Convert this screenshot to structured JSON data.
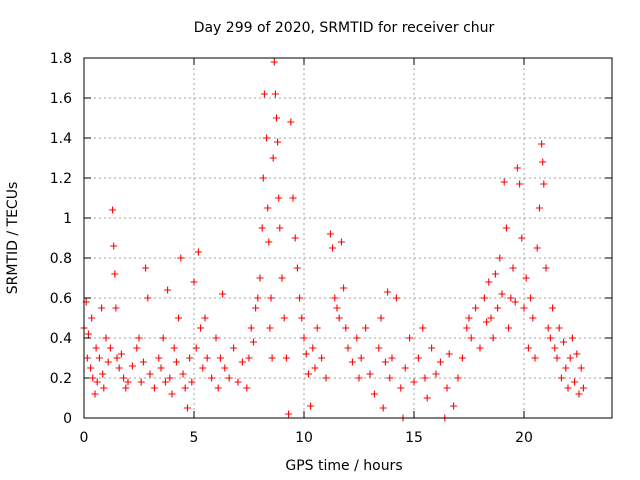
{
  "chart_data": {
    "type": "scatter",
    "title": "Day 299 of 2020, SRMTID for receiver chur",
    "xlabel": "GPS time / hours",
    "ylabel": "SRMTID / TECUs",
    "xlim": [
      0,
      24
    ],
    "ylim": [
      0,
      1.8
    ],
    "xticks": [
      0,
      5,
      10,
      15,
      20
    ],
    "xtick_labels": [
      "0",
      "5",
      "10",
      "15",
      "20"
    ],
    "yticks": [
      0,
      0.2,
      0.4,
      0.6,
      0.8,
      1,
      1.2,
      1.4,
      1.6,
      1.8
    ],
    "ytick_labels": [
      "0",
      "0.2",
      "0.4",
      "0.6",
      "0.8",
      "1",
      "1.2",
      "1.4",
      "1.6",
      "1.8"
    ],
    "grid": true,
    "marker": "+",
    "series": [
      {
        "name": "SRMTID",
        "color": "#ff0000",
        "points": [
          [
            0.0,
            0.45
          ],
          [
            0.1,
            0.58
          ],
          [
            0.15,
            0.3
          ],
          [
            0.2,
            0.42
          ],
          [
            0.3,
            0.25
          ],
          [
            0.35,
            0.5
          ],
          [
            0.4,
            0.2
          ],
          [
            0.5,
            0.12
          ],
          [
            0.55,
            0.35
          ],
          [
            0.6,
            0.18
          ],
          [
            0.7,
            0.3
          ],
          [
            0.8,
            0.55
          ],
          [
            0.85,
            0.22
          ],
          [
            0.9,
            0.15
          ],
          [
            1.0,
            0.4
          ],
          [
            1.1,
            0.28
          ],
          [
            1.2,
            0.35
          ],
          [
            1.3,
            1.04
          ],
          [
            1.35,
            0.86
          ],
          [
            1.4,
            0.72
          ],
          [
            1.45,
            0.55
          ],
          [
            1.5,
            0.3
          ],
          [
            1.6,
            0.25
          ],
          [
            1.7,
            0.32
          ],
          [
            1.8,
            0.2
          ],
          [
            1.9,
            0.15
          ],
          [
            2.0,
            0.18
          ],
          [
            2.2,
            0.26
          ],
          [
            2.4,
            0.35
          ],
          [
            2.5,
            0.4
          ],
          [
            2.6,
            0.18
          ],
          [
            2.7,
            0.28
          ],
          [
            2.8,
            0.75
          ],
          [
            2.9,
            0.6
          ],
          [
            3.0,
            0.22
          ],
          [
            3.2,
            0.15
          ],
          [
            3.4,
            0.3
          ],
          [
            3.5,
            0.25
          ],
          [
            3.6,
            0.4
          ],
          [
            3.7,
            0.18
          ],
          [
            3.8,
            0.64
          ],
          [
            3.9,
            0.2
          ],
          [
            4.0,
            0.12
          ],
          [
            4.1,
            0.35
          ],
          [
            4.2,
            0.28
          ],
          [
            4.3,
            0.5
          ],
          [
            4.4,
            0.8
          ],
          [
            4.5,
            0.22
          ],
          [
            4.6,
            0.15
          ],
          [
            4.7,
            0.05
          ],
          [
            4.8,
            0.3
          ],
          [
            4.9,
            0.18
          ],
          [
            5.0,
            0.68
          ],
          [
            5.1,
            0.35
          ],
          [
            5.2,
            0.83
          ],
          [
            5.3,
            0.45
          ],
          [
            5.4,
            0.25
          ],
          [
            5.5,
            0.5
          ],
          [
            5.6,
            0.3
          ],
          [
            5.8,
            0.2
          ],
          [
            6.0,
            0.4
          ],
          [
            6.1,
            0.15
          ],
          [
            6.2,
            0.3
          ],
          [
            6.3,
            0.62
          ],
          [
            6.4,
            0.25
          ],
          [
            6.6,
            0.2
          ],
          [
            6.8,
            0.35
          ],
          [
            7.0,
            0.18
          ],
          [
            7.2,
            0.28
          ],
          [
            7.4,
            0.15
          ],
          [
            7.5,
            0.3
          ],
          [
            7.6,
            0.45
          ],
          [
            7.7,
            0.38
          ],
          [
            7.8,
            0.55
          ],
          [
            7.9,
            0.6
          ],
          [
            8.0,
            0.7
          ],
          [
            8.1,
            0.95
          ],
          [
            8.15,
            1.2
          ],
          [
            8.2,
            1.62
          ],
          [
            8.3,
            1.4
          ],
          [
            8.35,
            1.05
          ],
          [
            8.4,
            0.88
          ],
          [
            8.45,
            0.45
          ],
          [
            8.5,
            0.6
          ],
          [
            8.55,
            0.3
          ],
          [
            8.6,
            1.3
          ],
          [
            8.65,
            1.78
          ],
          [
            8.7,
            1.62
          ],
          [
            8.75,
            1.5
          ],
          [
            8.8,
            1.38
          ],
          [
            8.85,
            1.1
          ],
          [
            8.9,
            0.95
          ],
          [
            9.0,
            0.7
          ],
          [
            9.1,
            0.5
          ],
          [
            9.2,
            0.3
          ],
          [
            9.3,
            0.02
          ],
          [
            9.4,
            1.48
          ],
          [
            9.5,
            1.1
          ],
          [
            9.6,
            0.9
          ],
          [
            9.7,
            0.75
          ],
          [
            9.8,
            0.6
          ],
          [
            9.9,
            0.5
          ],
          [
            10.0,
            0.4
          ],
          [
            10.1,
            0.32
          ],
          [
            10.2,
            0.22
          ],
          [
            10.3,
            0.06
          ],
          [
            10.4,
            0.35
          ],
          [
            10.5,
            0.25
          ],
          [
            10.6,
            0.45
          ],
          [
            10.8,
            0.3
          ],
          [
            11.0,
            0.2
          ],
          [
            11.2,
            0.92
          ],
          [
            11.3,
            0.85
          ],
          [
            11.4,
            0.6
          ],
          [
            11.5,
            0.55
          ],
          [
            11.6,
            0.5
          ],
          [
            11.7,
            0.88
          ],
          [
            11.8,
            0.65
          ],
          [
            11.9,
            0.45
          ],
          [
            12.0,
            0.35
          ],
          [
            12.2,
            0.28
          ],
          [
            12.4,
            0.4
          ],
          [
            12.5,
            0.2
          ],
          [
            12.6,
            0.3
          ],
          [
            12.8,
            0.45
          ],
          [
            13.0,
            0.22
          ],
          [
            13.2,
            0.12
          ],
          [
            13.4,
            0.35
          ],
          [
            13.5,
            0.5
          ],
          [
            13.6,
            0.05
          ],
          [
            13.7,
            0.28
          ],
          [
            13.8,
            0.63
          ],
          [
            13.9,
            0.2
          ],
          [
            14.0,
            0.3
          ],
          [
            14.2,
            0.6
          ],
          [
            14.4,
            0.15
          ],
          [
            14.5,
            0.0
          ],
          [
            14.6,
            0.25
          ],
          [
            14.8,
            0.4
          ],
          [
            15.0,
            0.18
          ],
          [
            15.2,
            0.3
          ],
          [
            15.4,
            0.45
          ],
          [
            15.5,
            0.2
          ],
          [
            15.6,
            0.1
          ],
          [
            15.8,
            0.35
          ],
          [
            16.0,
            0.22
          ],
          [
            16.2,
            0.28
          ],
          [
            16.4,
            0.0
          ],
          [
            16.5,
            0.15
          ],
          [
            16.6,
            0.32
          ],
          [
            16.8,
            0.06
          ],
          [
            17.0,
            0.2
          ],
          [
            17.2,
            0.3
          ],
          [
            17.4,
            0.45
          ],
          [
            17.5,
            0.5
          ],
          [
            17.6,
            0.4
          ],
          [
            17.8,
            0.55
          ],
          [
            18.0,
            0.35
          ],
          [
            18.2,
            0.6
          ],
          [
            18.3,
            0.48
          ],
          [
            18.4,
            0.68
          ],
          [
            18.5,
            0.5
          ],
          [
            18.6,
            0.4
          ],
          [
            18.7,
            0.72
          ],
          [
            18.8,
            0.55
          ],
          [
            18.9,
            0.8
          ],
          [
            19.0,
            0.62
          ],
          [
            19.1,
            1.18
          ],
          [
            19.2,
            0.95
          ],
          [
            19.3,
            0.45
          ],
          [
            19.4,
            0.6
          ],
          [
            19.5,
            0.75
          ],
          [
            19.6,
            0.58
          ],
          [
            19.7,
            1.25
          ],
          [
            19.8,
            1.17
          ],
          [
            19.9,
            0.9
          ],
          [
            20.0,
            0.55
          ],
          [
            20.1,
            0.7
          ],
          [
            20.2,
            0.35
          ],
          [
            20.3,
            0.6
          ],
          [
            20.4,
            0.5
          ],
          [
            20.5,
            0.3
          ],
          [
            20.6,
            0.85
          ],
          [
            20.7,
            1.05
          ],
          [
            20.8,
            1.37
          ],
          [
            20.85,
            1.28
          ],
          [
            20.9,
            1.17
          ],
          [
            21.0,
            0.75
          ],
          [
            21.1,
            0.45
          ],
          [
            21.2,
            0.4
          ],
          [
            21.3,
            0.55
          ],
          [
            21.4,
            0.35
          ],
          [
            21.5,
            0.3
          ],
          [
            21.6,
            0.45
          ],
          [
            21.7,
            0.2
          ],
          [
            21.8,
            0.38
          ],
          [
            21.9,
            0.25
          ],
          [
            22.0,
            0.15
          ],
          [
            22.1,
            0.3
          ],
          [
            22.2,
            0.4
          ],
          [
            22.3,
            0.18
          ],
          [
            22.4,
            0.32
          ],
          [
            22.5,
            0.12
          ],
          [
            22.6,
            0.25
          ],
          [
            22.7,
            0.15
          ]
        ]
      }
    ]
  }
}
